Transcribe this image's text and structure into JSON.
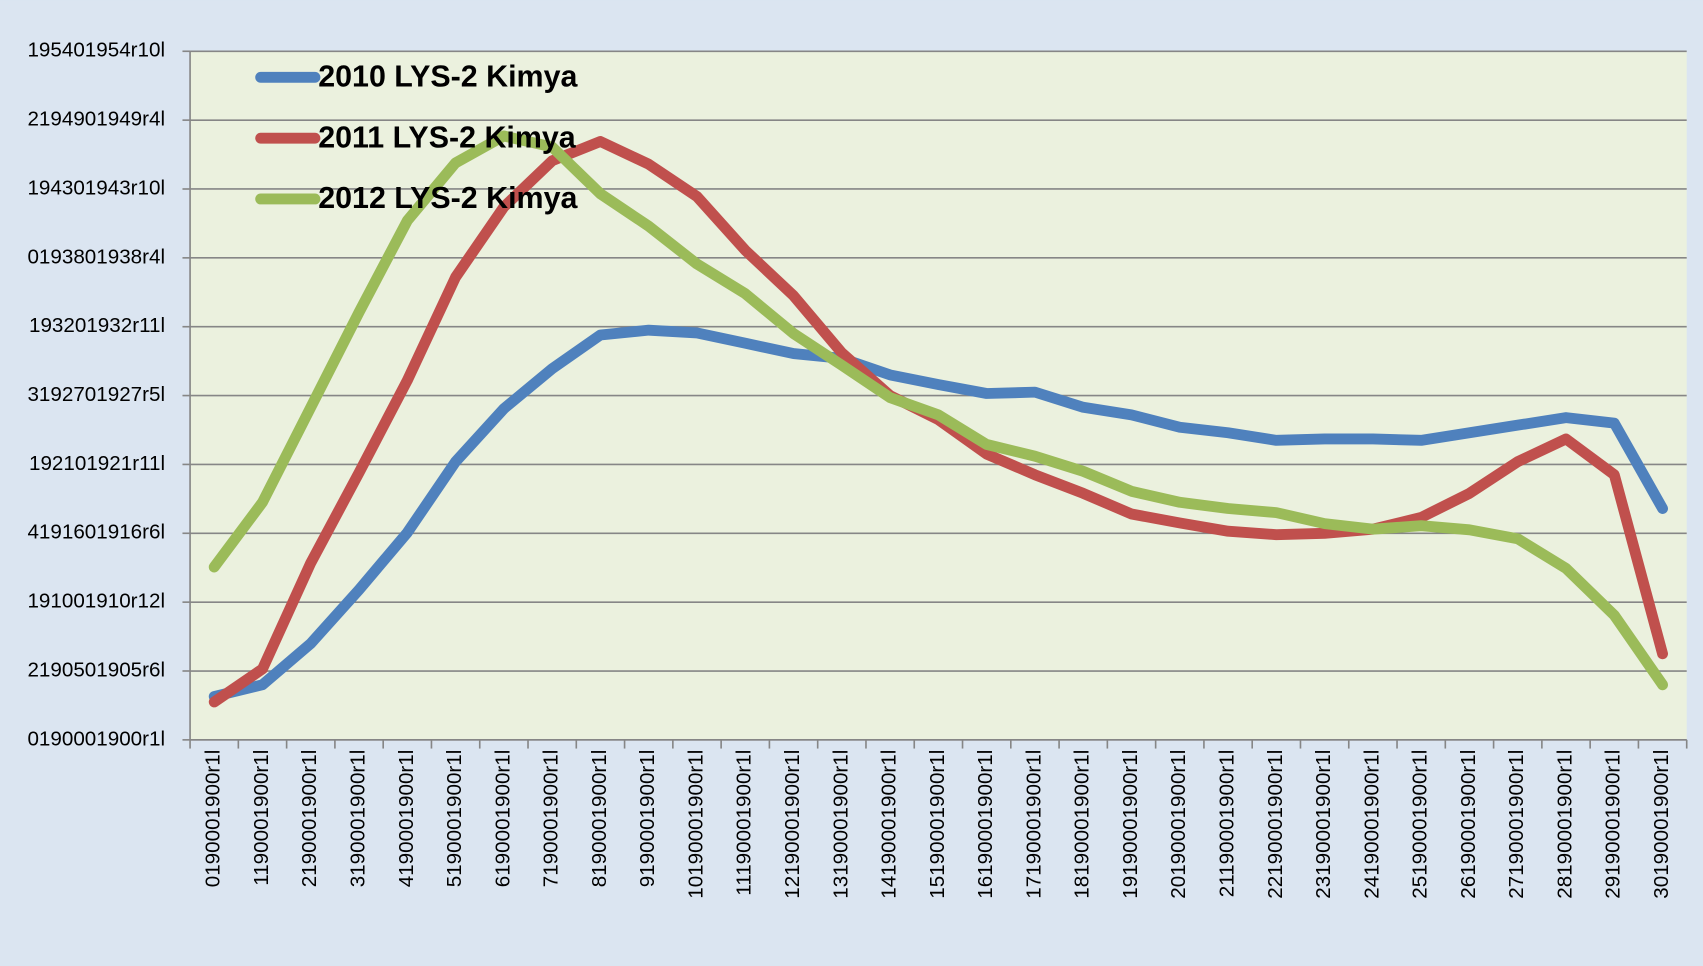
{
  "chart_data": {
    "type": "line",
    "categories": [
      "0190001900r1l",
      "1190001900r1l",
      "2190001900r1l",
      "3190001900r1l",
      "4190001900r1l",
      "5190001900r1l",
      "6190001900r1l",
      "7190001900r1l",
      "8190001900r1l",
      "9190001900r1l",
      "10190001900r1l",
      "11190001900r1l",
      "12190001900r1l",
      "13190001900r1l",
      "14190001900r1l",
      "15190001900r1l",
      "16190001900r1l",
      "17190001900r1l",
      "18190001900r1l",
      "19190001900r1l",
      "20190001900r1l",
      "21190001900r1l",
      "22190001900r1l",
      "23190001900r1l",
      "24190001900r1l",
      "25190001900r1l",
      "26190001900r1l",
      "27190001900r1l",
      "28190001900r1l",
      "29190001900r1l",
      "30190001900r1l"
    ],
    "series": [
      {
        "name": "2010 LYS-2 Kimya",
        "color": "#4f81bd",
        "values": [
          0.63,
          0.8,
          1.4,
          2.18,
          3.01,
          4.04,
          4.81,
          5.39,
          5.88,
          5.95,
          5.91,
          5.76,
          5.61,
          5.54,
          5.3,
          5.16,
          5.03,
          5.05,
          4.83,
          4.72,
          4.54,
          4.46,
          4.35,
          4.37,
          4.37,
          4.35,
          4.46,
          4.57,
          4.68,
          4.6,
          3.36
        ]
      },
      {
        "name": "2011 LYS-2 Kimya",
        "color": "#c0504d",
        "values": [
          0.55,
          1.03,
          2.57,
          3.88,
          5.22,
          6.72,
          7.74,
          8.41,
          8.69,
          8.36,
          7.89,
          7.11,
          6.45,
          5.62,
          5.0,
          4.65,
          4.15,
          3.85,
          3.58,
          3.28,
          3.15,
          3.03,
          2.98,
          3.0,
          3.06,
          3.23,
          3.58,
          4.04,
          4.37,
          3.85,
          1.25
        ]
      },
      {
        "name": "2012 LYS-2 Kimya",
        "color": "#9bbb59",
        "values": [
          2.51,
          3.45,
          4.83,
          6.21,
          7.54,
          8.38,
          8.77,
          8.61,
          7.93,
          7.46,
          6.91,
          6.48,
          5.9,
          5.44,
          4.97,
          4.72,
          4.29,
          4.12,
          3.9,
          3.61,
          3.45,
          3.36,
          3.3,
          3.14,
          3.06,
          3.11,
          3.05,
          2.92,
          2.49,
          1.81,
          0.8
        ]
      }
    ],
    "ylim": [
      0,
      10
    ],
    "yticks": [
      {
        "value": 0,
        "label": "0190001900r1l"
      },
      {
        "value": 1,
        "label": "2190501905r6l"
      },
      {
        "value": 2,
        "label": "191001910r12l"
      },
      {
        "value": 3,
        "label": "4191601916r6l"
      },
      {
        "value": 4,
        "label": "192101921r11l"
      },
      {
        "value": 5,
        "label": "3192701927r5l"
      },
      {
        "value": 6,
        "label": "193201932r11l"
      },
      {
        "value": 7,
        "label": "0193801938r4l"
      },
      {
        "value": 8,
        "label": "194301943r10l"
      },
      {
        "value": 9,
        "label": "2194901949r4l"
      },
      {
        "value": 10,
        "label": "195401954r10l"
      }
    ],
    "grid": true,
    "legend": "top-left"
  }
}
